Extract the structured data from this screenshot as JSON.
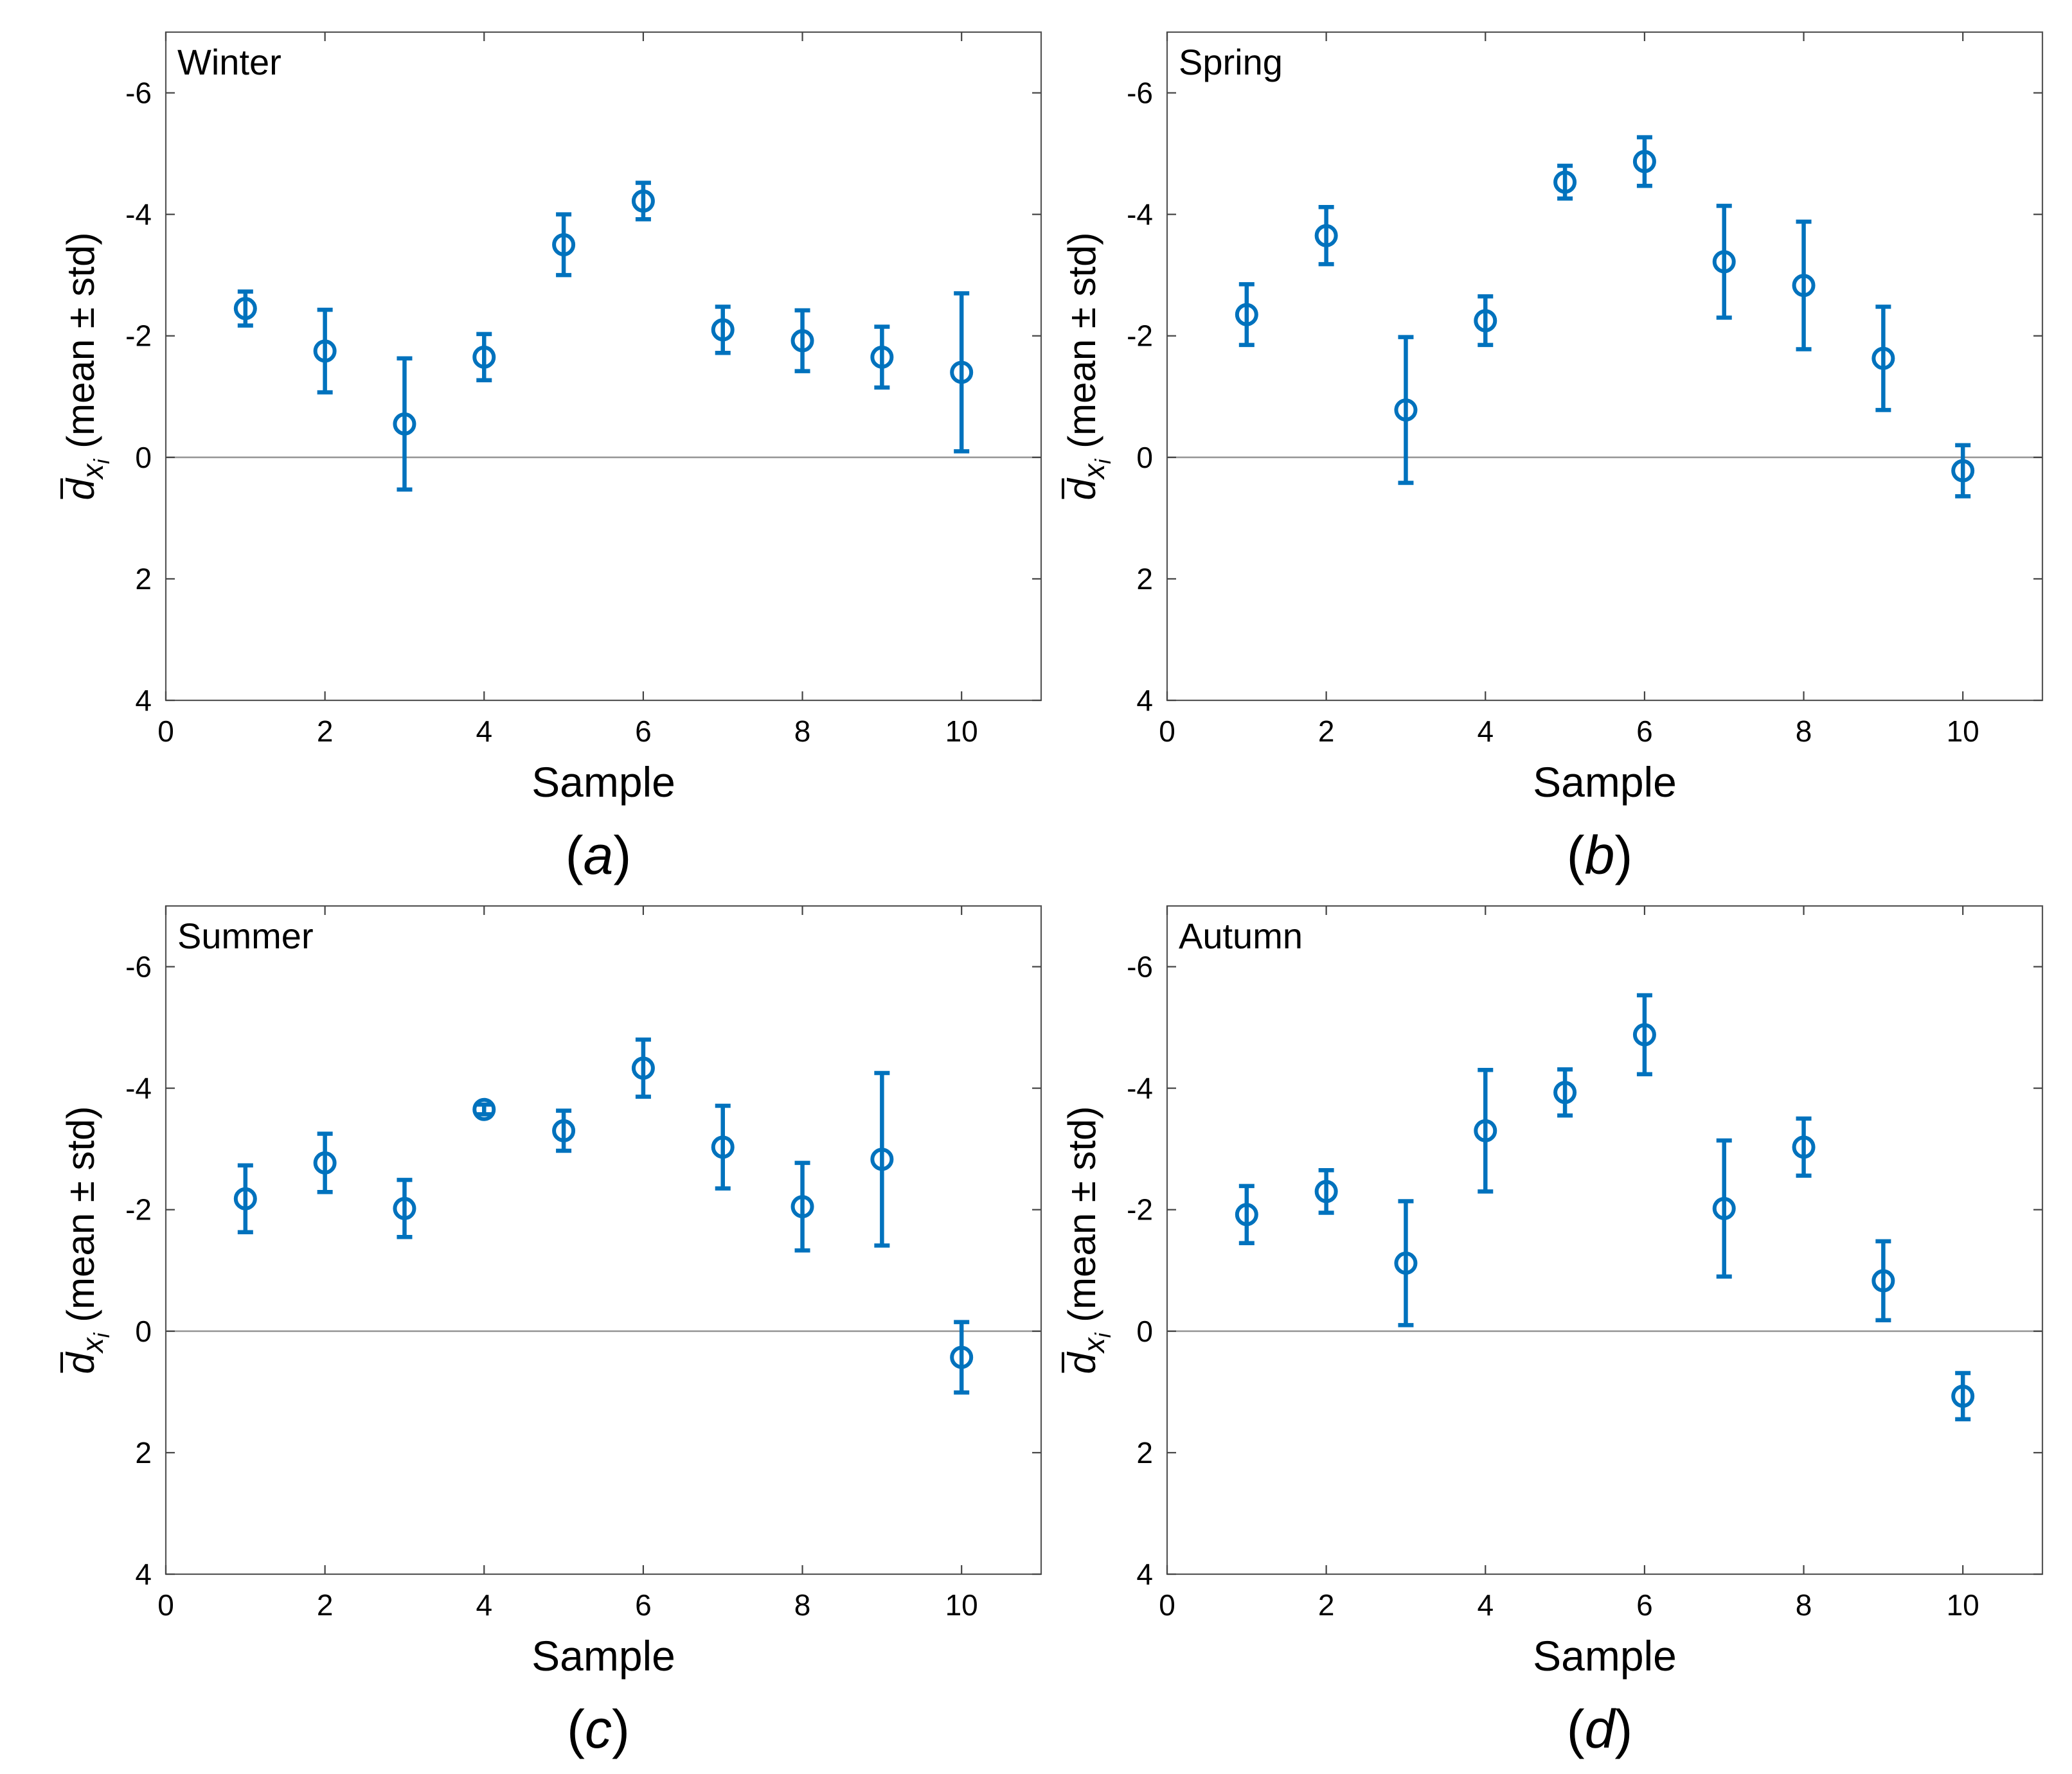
{
  "chart_data": [
    {
      "type": "errorbar",
      "title": "Winter",
      "panel": "(a)",
      "xlabel": "Sample",
      "ylabel": "d̄x_i (mean ± std)",
      "ylabel_main": "d",
      "ylabel_sub": "x",
      "ylabel_subsub": "i",
      "ylabel_suffix": " (mean ± std)",
      "xlim": [
        0,
        11
      ],
      "ylim": [
        4,
        -7
      ],
      "y_reversed": true,
      "xticks": [
        0,
        2,
        4,
        6,
        8,
        10
      ],
      "yticks": [
        -6,
        -4,
        -2,
        0,
        2,
        4
      ],
      "series": [
        {
          "color": "#0072bd",
          "x": [
            1,
            2,
            3,
            4,
            5,
            6,
            7,
            8,
            9,
            10
          ],
          "y": [
            -2.45,
            -1.75,
            -0.55,
            -1.65,
            -3.5,
            -4.22,
            -2.1,
            -1.92,
            -1.65,
            -1.4
          ],
          "std": [
            0.28,
            0.68,
            1.08,
            0.38,
            0.5,
            0.3,
            0.38,
            0.5,
            0.5,
            1.3
          ]
        }
      ]
    },
    {
      "type": "errorbar",
      "title": "Spring",
      "panel": "(b)",
      "xlabel": "Sample",
      "ylabel": "d̄x_i (mean ± std)",
      "ylabel_main": "d",
      "ylabel_sub": "x",
      "ylabel_subsub": "i",
      "ylabel_suffix": " (mean ± std)",
      "xlim": [
        0,
        11
      ],
      "ylim": [
        4,
        -7
      ],
      "y_reversed": true,
      "xticks": [
        0,
        2,
        4,
        6,
        8,
        10
      ],
      "yticks": [
        -6,
        -4,
        -2,
        0,
        2,
        4
      ],
      "series": [
        {
          "color": "#0072bd",
          "x": [
            1,
            2,
            3,
            4,
            5,
            6,
            7,
            8,
            9,
            10
          ],
          "y": [
            -2.35,
            -3.65,
            -0.78,
            -2.25,
            -4.53,
            -4.87,
            -3.22,
            -2.83,
            -1.63,
            0.22
          ],
          "std": [
            0.5,
            0.47,
            1.2,
            0.4,
            0.27,
            0.4,
            0.92,
            1.05,
            0.85,
            0.42
          ]
        }
      ]
    },
    {
      "type": "errorbar",
      "title": "Summer",
      "panel": "(c)",
      "xlabel": "Sample",
      "ylabel": "d̄x_i (mean ± std)",
      "ylabel_main": "d",
      "ylabel_sub": "x",
      "ylabel_subsub": "i",
      "ylabel_suffix": " (mean ± std)",
      "xlim": [
        0,
        11
      ],
      "ylim": [
        4,
        -7
      ],
      "y_reversed": true,
      "xticks": [
        0,
        2,
        4,
        6,
        8,
        10
      ],
      "yticks": [
        -6,
        -4,
        -2,
        0,
        2,
        4
      ],
      "series": [
        {
          "color": "#0072bd",
          "x": [
            1,
            2,
            3,
            4,
            5,
            6,
            7,
            8,
            9,
            10
          ],
          "y": [
            -2.18,
            -2.77,
            -2.02,
            -3.65,
            -3.3,
            -4.33,
            -3.03,
            -2.05,
            -2.83,
            0.43
          ],
          "std": [
            0.55,
            0.48,
            0.47,
            0.08,
            0.33,
            0.47,
            0.68,
            0.72,
            1.42,
            0.58
          ]
        }
      ]
    },
    {
      "type": "errorbar",
      "title": "Autumn",
      "panel": "(d)",
      "xlabel": "Sample",
      "ylabel": "d̄x_i (mean ± std)",
      "ylabel_main": "d",
      "ylabel_sub": "x",
      "ylabel_subsub": "i",
      "ylabel_suffix": " (mean ± std)",
      "xlim": [
        0,
        11
      ],
      "ylim": [
        4,
        -7
      ],
      "y_reversed": true,
      "xticks": [
        0,
        2,
        4,
        6,
        8,
        10
      ],
      "yticks": [
        -6,
        -4,
        -2,
        0,
        2,
        4
      ],
      "series": [
        {
          "color": "#0072bd",
          "x": [
            1,
            2,
            3,
            4,
            5,
            6,
            7,
            8,
            9,
            10
          ],
          "y": [
            -1.92,
            -2.3,
            -1.12,
            -3.3,
            -3.93,
            -4.88,
            -2.02,
            -3.03,
            -0.83,
            1.07
          ],
          "std": [
            0.47,
            0.35,
            1.02,
            1.0,
            0.38,
            0.65,
            1.12,
            0.47,
            0.65,
            0.38
          ]
        }
      ]
    }
  ]
}
